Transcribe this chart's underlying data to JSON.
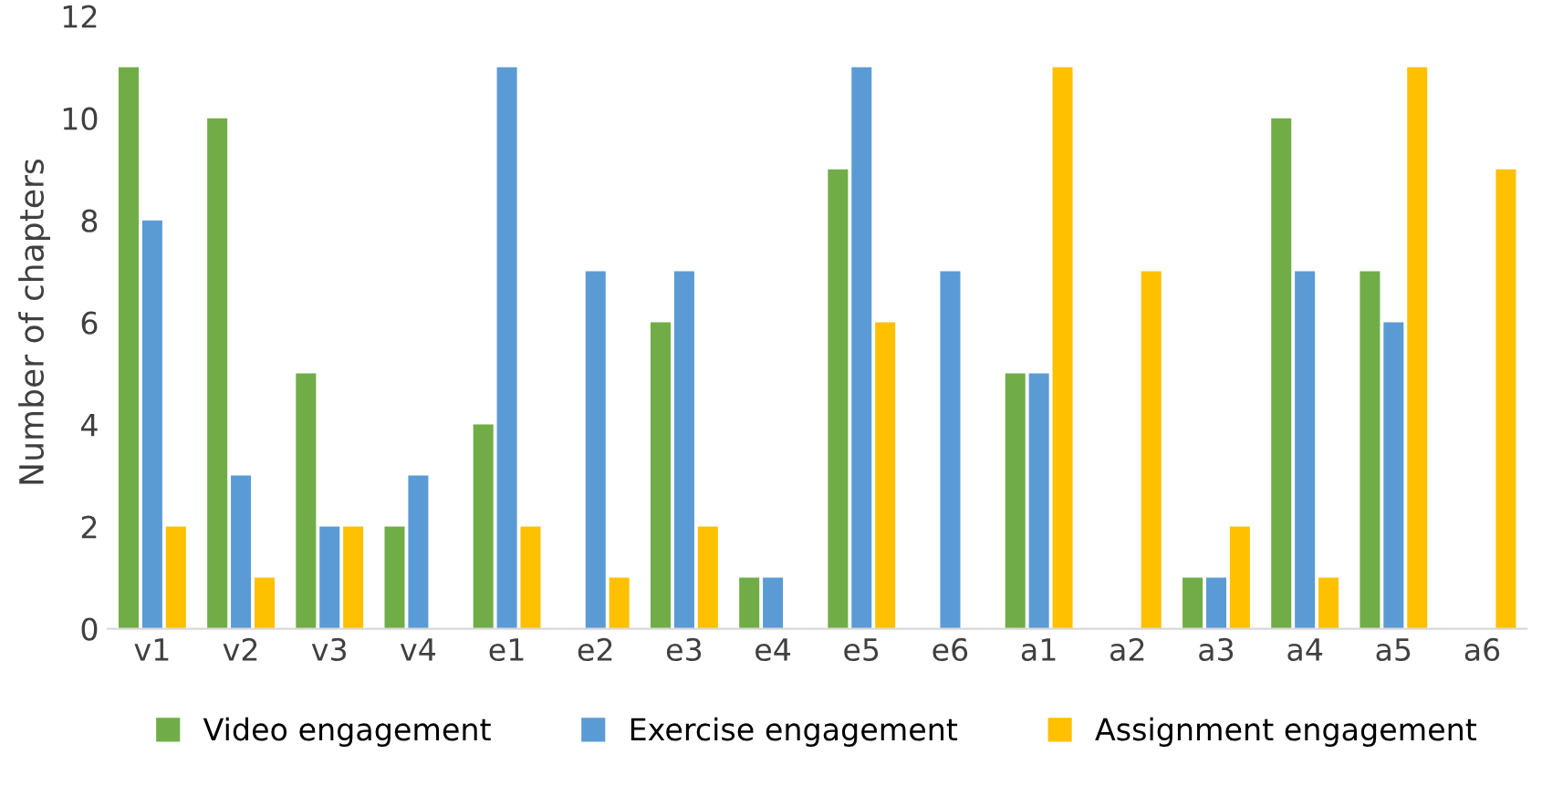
{
  "chart_data": {
    "type": "bar",
    "ylabel": "Number of chapters",
    "categories": [
      "v1",
      "v2",
      "v3",
      "v4",
      "e1",
      "e2",
      "e3",
      "e4",
      "e5",
      "e6",
      "a1",
      "a2",
      "a3",
      "a4",
      "a5",
      "a6"
    ],
    "series": [
      {
        "name": "Video engagement",
        "color": "#70ad47",
        "values": [
          11,
          10,
          5,
          2,
          4,
          0,
          6,
          1,
          9,
          0,
          5,
          0,
          1,
          10,
          7,
          0
        ]
      },
      {
        "name": "Exercise engagement",
        "color": "#5b9bd5",
        "values": [
          8,
          3,
          2,
          3,
          11,
          7,
          7,
          1,
          11,
          7,
          5,
          0,
          1,
          7,
          6,
          0
        ]
      },
      {
        "name": "Assignment engagement",
        "color": "#ffc000",
        "values": [
          2,
          1,
          2,
          0,
          2,
          1,
          2,
          0,
          6,
          0,
          11,
          7,
          2,
          1,
          11,
          9
        ]
      }
    ],
    "ylim": [
      0,
      12
    ],
    "yticks": [
      0,
      2,
      4,
      6,
      8,
      10,
      12
    ],
    "grid": false,
    "legend": "bottom"
  }
}
